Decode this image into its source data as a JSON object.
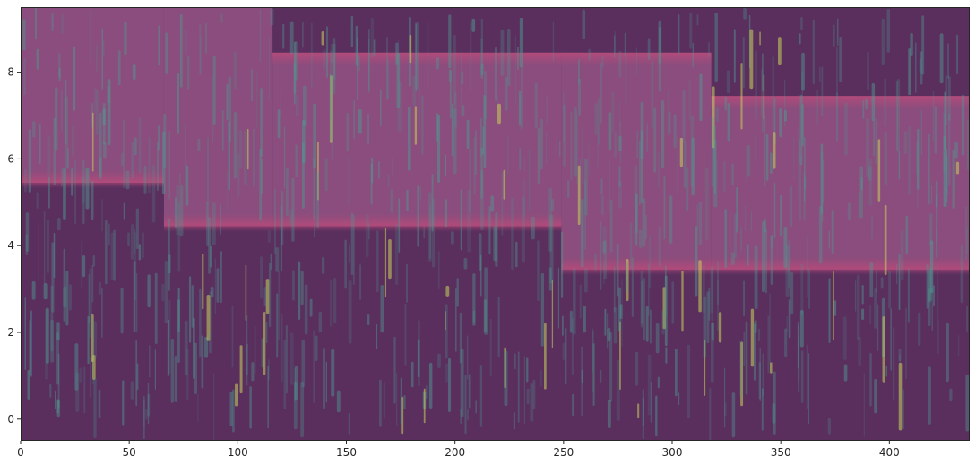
{
  "chart_data": {
    "type": "heatmap",
    "title": "",
    "xlabel": "",
    "ylabel": "",
    "xlim": [
      0,
      437
    ],
    "ylim": [
      -0.5,
      9.5
    ],
    "x_ticks": [
      0,
      50,
      100,
      150,
      200,
      250,
      300,
      350,
      400
    ],
    "y_ticks": [
      0,
      2,
      4,
      6,
      8
    ],
    "grid": false,
    "legend": "none",
    "colors": {
      "low": "#5a2f5e",
      "mid": "#8a4d7d",
      "band_edge": "#b84a7a",
      "noise": "#4f9b91",
      "spot": "#c8d45a"
    },
    "segments": [
      {
        "x_start": 0,
        "x_end": 66,
        "y_low": 5.45,
        "y_high": 9.5
      },
      {
        "x_start": 66,
        "x_end": 116,
        "y_low": 4.45,
        "y_high": 9.5
      },
      {
        "x_start": 116,
        "x_end": 249,
        "y_low": 4.45,
        "y_high": 8.45
      },
      {
        "x_start": 249,
        "x_end": 318,
        "y_low": 3.45,
        "y_high": 8.45
      },
      {
        "x_start": 318,
        "x_end": 437,
        "y_low": 3.45,
        "y_high": 7.45
      }
    ]
  }
}
